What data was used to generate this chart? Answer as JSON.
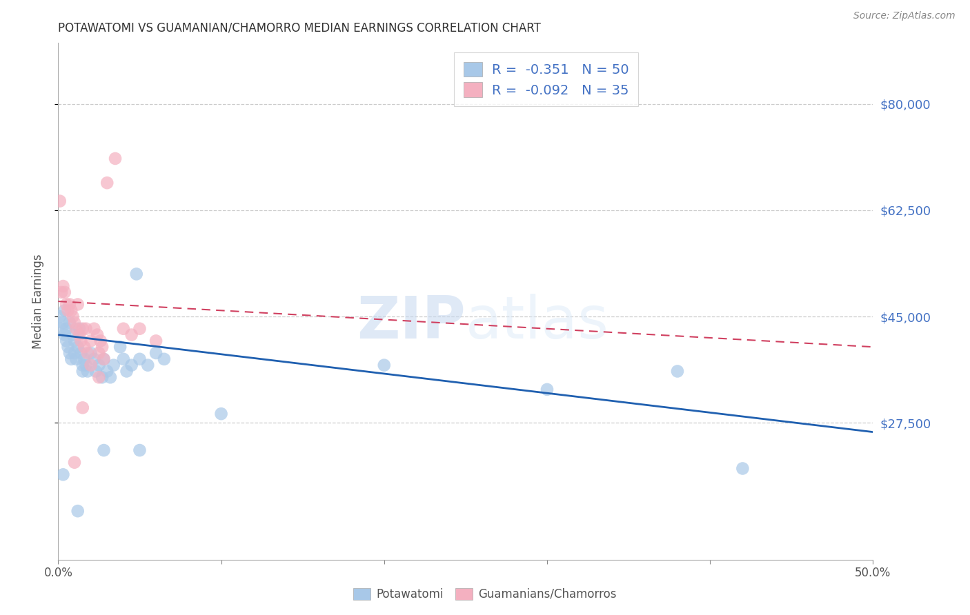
{
  "title": "POTAWATOMI VS GUAMANIAN/CHAMORRO MEDIAN EARNINGS CORRELATION CHART",
  "source": "Source: ZipAtlas.com",
  "ylabel": "Median Earnings",
  "watermark_zip": "ZIP",
  "watermark_atlas": "atlas",
  "y_tick_labels": [
    "$27,500",
    "$45,000",
    "$62,500",
    "$80,000"
  ],
  "y_tick_values": [
    27500,
    45000,
    62500,
    80000
  ],
  "ylim": [
    5000,
    90000
  ],
  "xlim": [
    0.0,
    0.5
  ],
  "blue_R": "-0.351",
  "blue_N": "50",
  "pink_R": "-0.092",
  "pink_N": "35",
  "blue_color": "#a8c8e8",
  "pink_color": "#f4b0c0",
  "blue_line_color": "#2060b0",
  "pink_line_color": "#d04060",
  "background_color": "#ffffff",
  "grid_color": "#cccccc",
  "title_color": "#333333",
  "axis_label_color": "#555555",
  "right_label_color": "#4472c4",
  "legend_text_color": "#4472c4",
  "blue_scatter": [
    [
      0.001,
      45000
    ],
    [
      0.002,
      43000
    ],
    [
      0.003,
      44000
    ],
    [
      0.004,
      46000
    ],
    [
      0.004,
      42000
    ],
    [
      0.005,
      43000
    ],
    [
      0.005,
      41000
    ],
    [
      0.006,
      40000
    ],
    [
      0.007,
      44000
    ],
    [
      0.007,
      39000
    ],
    [
      0.008,
      38000
    ],
    [
      0.009,
      42000
    ],
    [
      0.01,
      41000
    ],
    [
      0.01,
      39000
    ],
    [
      0.011,
      38000
    ],
    [
      0.012,
      40000
    ],
    [
      0.013,
      43000
    ],
    [
      0.014,
      39000
    ],
    [
      0.015,
      37000
    ],
    [
      0.015,
      36000
    ],
    [
      0.016,
      38000
    ],
    [
      0.017,
      37000
    ],
    [
      0.018,
      36000
    ],
    [
      0.02,
      39000
    ],
    [
      0.022,
      38000
    ],
    [
      0.023,
      36000
    ],
    [
      0.025,
      37000
    ],
    [
      0.027,
      35000
    ],
    [
      0.028,
      38000
    ],
    [
      0.03,
      36000
    ],
    [
      0.032,
      35000
    ],
    [
      0.034,
      37000
    ],
    [
      0.038,
      40000
    ],
    [
      0.04,
      38000
    ],
    [
      0.042,
      36000
    ],
    [
      0.045,
      37000
    ],
    [
      0.048,
      52000
    ],
    [
      0.05,
      38000
    ],
    [
      0.055,
      37000
    ],
    [
      0.06,
      39000
    ],
    [
      0.065,
      38000
    ],
    [
      0.003,
      19000
    ],
    [
      0.012,
      13000
    ],
    [
      0.028,
      23000
    ],
    [
      0.05,
      23000
    ],
    [
      0.1,
      29000
    ],
    [
      0.2,
      37000
    ],
    [
      0.3,
      33000
    ],
    [
      0.38,
      36000
    ],
    [
      0.42,
      20000
    ]
  ],
  "pink_scatter": [
    [
      0.001,
      64000
    ],
    [
      0.002,
      49000
    ],
    [
      0.003,
      50000
    ],
    [
      0.004,
      49000
    ],
    [
      0.005,
      47000
    ],
    [
      0.006,
      46000
    ],
    [
      0.007,
      47000
    ],
    [
      0.008,
      46000
    ],
    [
      0.009,
      45000
    ],
    [
      0.01,
      44000
    ],
    [
      0.011,
      43000
    ],
    [
      0.012,
      47000
    ],
    [
      0.013,
      42000
    ],
    [
      0.014,
      41000
    ],
    [
      0.015,
      43000
    ],
    [
      0.016,
      40000
    ],
    [
      0.017,
      43000
    ],
    [
      0.018,
      39000
    ],
    [
      0.02,
      41000
    ],
    [
      0.022,
      43000
    ],
    [
      0.024,
      42000
    ],
    [
      0.025,
      39000
    ],
    [
      0.026,
      41000
    ],
    [
      0.027,
      40000
    ],
    [
      0.028,
      38000
    ],
    [
      0.03,
      67000
    ],
    [
      0.035,
      71000
    ],
    [
      0.04,
      43000
    ],
    [
      0.045,
      42000
    ],
    [
      0.05,
      43000
    ],
    [
      0.06,
      41000
    ],
    [
      0.01,
      21000
    ],
    [
      0.015,
      30000
    ],
    [
      0.02,
      37000
    ],
    [
      0.025,
      35000
    ]
  ],
  "blue_line_x": [
    0.0,
    0.5
  ],
  "blue_line_y": [
    42000,
    26000
  ],
  "pink_line_x": [
    0.0,
    0.5
  ],
  "pink_line_y": [
    47500,
    40000
  ]
}
